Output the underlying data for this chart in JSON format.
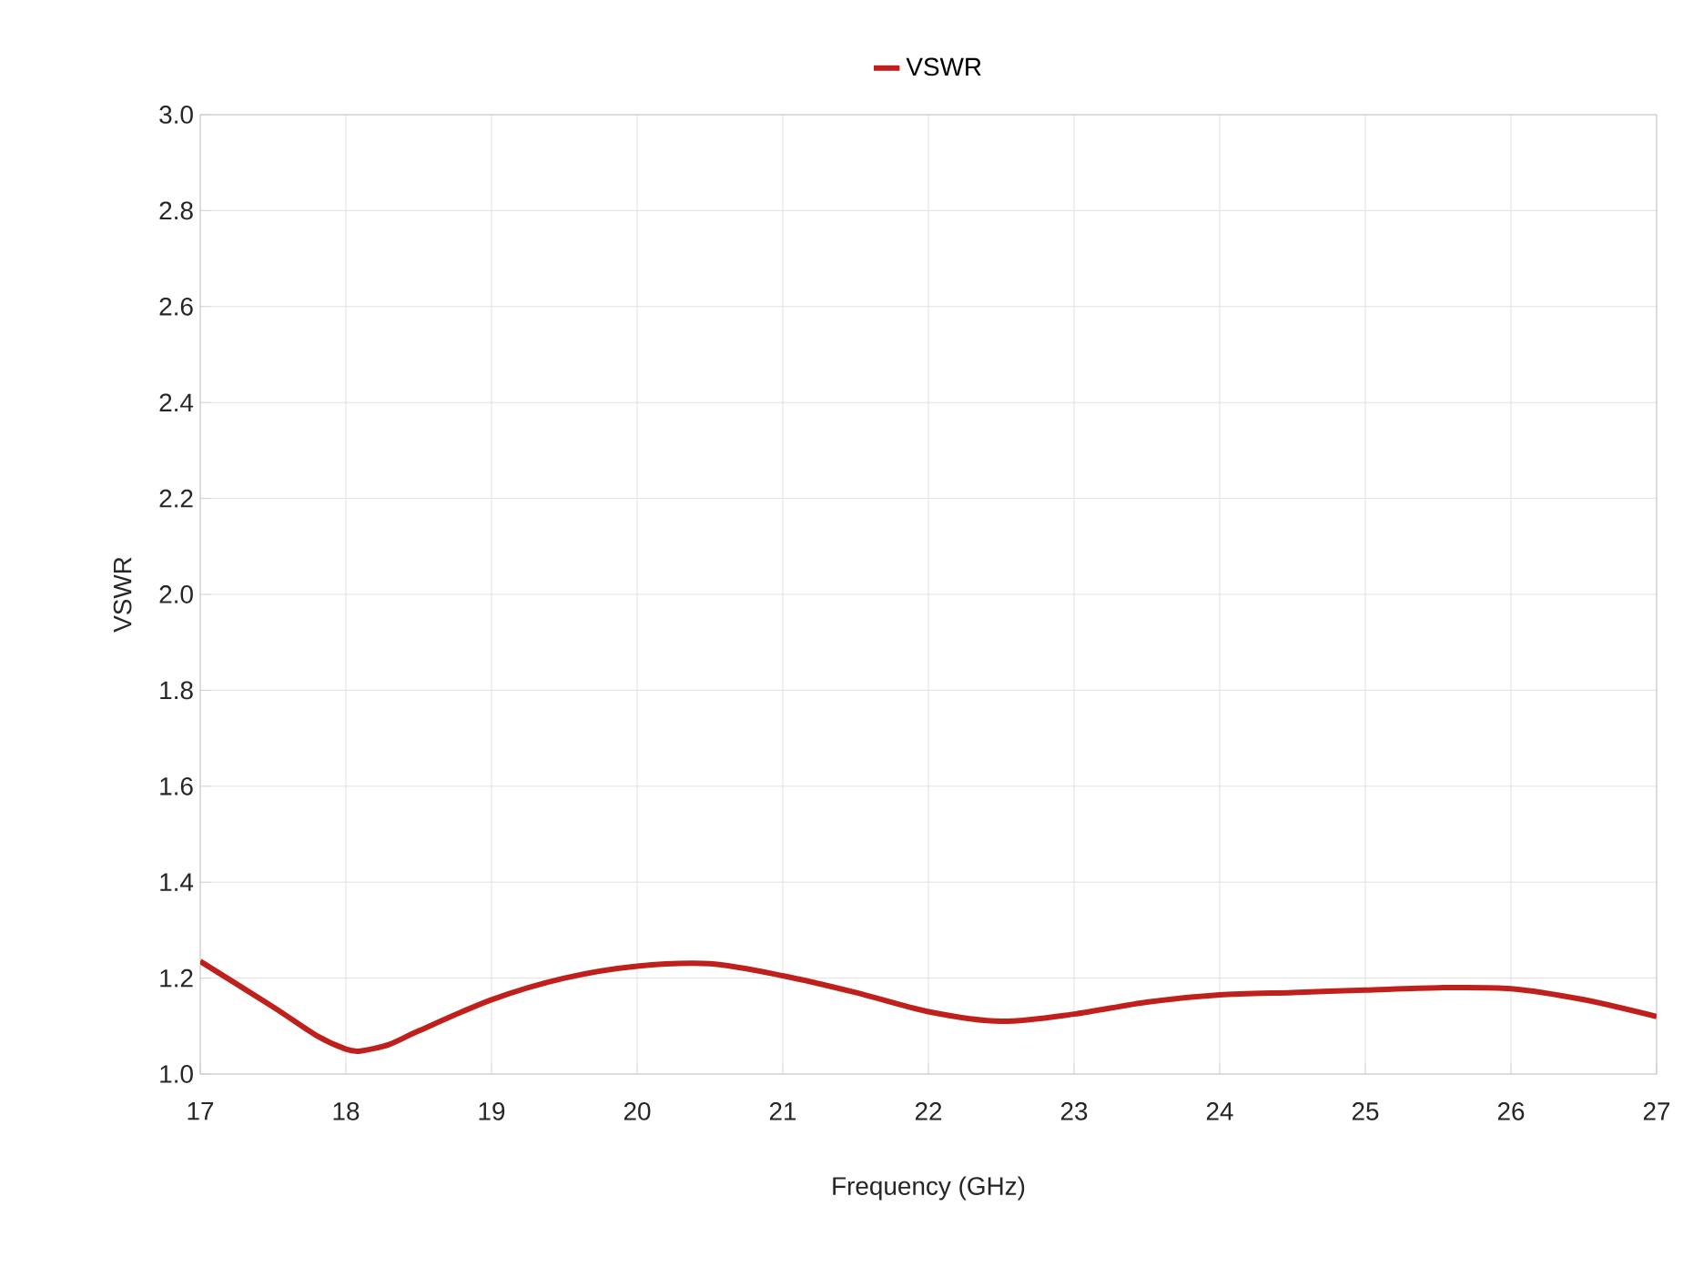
{
  "chart_data": {
    "type": "line",
    "xlabel": "Frequency (GHz)",
    "ylabel": "VSWR",
    "xlim": [
      17,
      27
    ],
    "xticks": [
      17,
      18,
      19,
      20,
      21,
      22,
      23,
      24,
      25,
      26,
      27
    ],
    "ylim": [
      1.0,
      3.0
    ],
    "yticks": [
      {
        "value": 1.0,
        "label": "1.0"
      },
      1.2,
      1.4,
      1.6,
      1.8,
      {
        "value": 2.0,
        "label": "2.0"
      },
      2.2,
      2.4,
      2.6,
      2.8,
      {
        "value": 3.0,
        "label": "3.0"
      }
    ],
    "grid": true,
    "legend": "top",
    "marker": "none",
    "line_style": "solid",
    "x": [
      17,
      17.5,
      17.8,
      18,
      18.1,
      18.3,
      18.5,
      19,
      19.5,
      20,
      20.5,
      21,
      21.5,
      22,
      22.5,
      23,
      23.5,
      24,
      24.5,
      25,
      25.5,
      26,
      26.5,
      27
    ],
    "series": [
      {
        "name": "VSWR",
        "color": "#c0201c",
        "values": [
          1.235,
          1.14,
          1.08,
          1.052,
          1.048,
          1.062,
          1.09,
          1.155,
          1.2,
          1.225,
          1.23,
          1.205,
          1.17,
          1.13,
          1.11,
          1.125,
          1.15,
          1.165,
          1.17,
          1.175,
          1.18,
          1.178,
          1.155,
          1.12
        ]
      }
    ]
  }
}
